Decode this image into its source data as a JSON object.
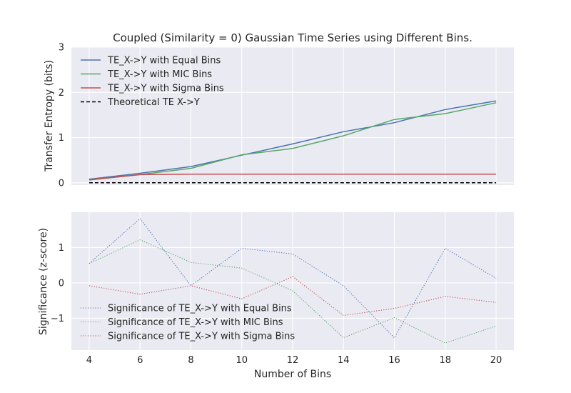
{
  "chart_data": [
    {
      "type": "line",
      "title": "Coupled (Similarity = 0) Gaussian Time Series using Different Bins.",
      "ylabel": "Transfer Entropy (bits)",
      "xlabel": "",
      "xlim": [
        3.3,
        20.7
      ],
      "ylim": [
        -0.05,
        3.0
      ],
      "yticks": [
        "0",
        "1",
        "2",
        "3"
      ],
      "ytick_values": [
        0,
        1,
        2,
        3
      ],
      "grid": true,
      "legend_position": "top-left",
      "x": [
        4,
        6,
        8,
        10,
        12,
        14,
        16,
        18,
        20
      ],
      "series": [
        {
          "name": "TE_X->Y with Equal Bins",
          "color": "#4c72b0",
          "style": "solid",
          "values": [
            0.08,
            0.21,
            0.36,
            0.61,
            0.86,
            1.13,
            1.33,
            1.62,
            1.81
          ]
        },
        {
          "name": "TE_X->Y with MIC Bins",
          "color": "#55a868",
          "style": "solid",
          "values": [
            0.06,
            0.18,
            0.32,
            0.62,
            0.76,
            1.04,
            1.4,
            1.53,
            1.77
          ]
        },
        {
          "name": "TE_X->Y with Sigma Bins",
          "color": "#c44e52",
          "style": "solid",
          "values": [
            0.07,
            0.18,
            0.19,
            0.19,
            0.19,
            0.19,
            0.19,
            0.19,
            0.19
          ]
        },
        {
          "name": "Theoretical TE X->Y",
          "color": "#000000",
          "style": "dashed",
          "values": [
            0.0,
            0.0,
            0.0,
            0.0,
            0.0,
            0.0,
            0.0,
            0.0,
            0.0
          ]
        }
      ]
    },
    {
      "type": "line",
      "title": "",
      "ylabel": "Significance (z-score)",
      "xlabel": "Number of Bins",
      "xlim": [
        3.3,
        20.7
      ],
      "ylim": [
        -1.9,
        2.0
      ],
      "xticks": [
        "4",
        "6",
        "8",
        "10",
        "12",
        "14",
        "16",
        "18",
        "20"
      ],
      "xtick_values": [
        4,
        6,
        8,
        10,
        12,
        14,
        16,
        18,
        20
      ],
      "yticks": [
        "−1",
        "0",
        "1"
      ],
      "ytick_values": [
        -1,
        0,
        1
      ],
      "grid": true,
      "legend_position": "bottom-left",
      "x": [
        4,
        6,
        8,
        10,
        12,
        14,
        16,
        18,
        20
      ],
      "series": [
        {
          "name": "Significance of TE_X->Y with Equal Bins",
          "color": "#4c72b0",
          "style": "dotted",
          "values": [
            0.55,
            1.82,
            -0.08,
            0.98,
            0.82,
            -0.08,
            -1.55,
            0.98,
            0.13
          ]
        },
        {
          "name": "Significance of TE_X->Y with MIC Bins",
          "color": "#55a868",
          "style": "dotted",
          "values": [
            0.55,
            1.22,
            0.58,
            0.42,
            -0.22,
            -1.55,
            -0.98,
            -1.7,
            -1.22
          ]
        },
        {
          "name": "Significance of TE_X->Y with Sigma Bins",
          "color": "#c44e52",
          "style": "dotted",
          "values": [
            -0.08,
            -0.32,
            -0.08,
            -0.45,
            0.18,
            -0.92,
            -0.72,
            -0.38,
            -0.55
          ]
        }
      ]
    }
  ]
}
